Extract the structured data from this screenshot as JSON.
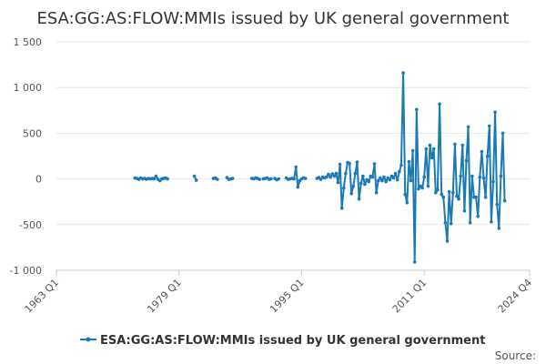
{
  "chart_data": {
    "type": "line",
    "title": "ESA:GG:AS:FLOW:MMIs issued by UK general government",
    "xlabel": "",
    "ylabel": "",
    "x_ticks": [
      "1963 Q1",
      "1979 Q1",
      "1995 Q1",
      "2011 Q1",
      "2024 Q4"
    ],
    "x_range": [
      "1963 Q1",
      "2024 Q4"
    ],
    "y_ticks": [
      "1 500",
      "1 000",
      "500",
      "0",
      "-500",
      "-1 000"
    ],
    "ylim": [
      -1000,
      1500
    ],
    "grid": true,
    "legend_position": "bottom",
    "series_color": "#1a7ab5",
    "series": [
      {
        "name": "ESA:GG:AS:FLOW:MMIs issued by UK general government",
        "points": [
          [
            "1973 Q2",
            10
          ],
          [
            "1973 Q3",
            5
          ],
          [
            "1973 Q4",
            -5
          ],
          [
            "1974 Q1",
            10
          ],
          [
            "1974 Q2",
            0
          ],
          [
            "1974 Q3",
            5
          ],
          [
            "1974 Q4",
            -5
          ],
          [
            "1975 Q1",
            5
          ],
          [
            "1975 Q2",
            0
          ],
          [
            "1975 Q3",
            5
          ],
          [
            "1975 Q4",
            0
          ],
          [
            "1976 Q1",
            30
          ],
          [
            "1976 Q2",
            -5
          ],
          [
            "1976 Q3",
            -20
          ],
          [
            "1976 Q4",
            0
          ],
          [
            "1977 Q1",
            5
          ],
          [
            "1977 Q2",
            10
          ],
          [
            "1977 Q3",
            0
          ],
          [
            "1981 Q1",
            30
          ],
          [
            "1981 Q2",
            -15
          ],
          [
            "1983 Q3",
            5
          ],
          [
            "1983 Q4",
            10
          ],
          [
            "1984 Q1",
            -5
          ],
          [
            "1985 Q2",
            15
          ],
          [
            "1985 Q3",
            -5
          ],
          [
            "1985 Q4",
            0
          ],
          [
            "1986 Q1",
            5
          ],
          [
            "1988 Q3",
            5
          ],
          [
            "1988 Q4",
            0
          ],
          [
            "1989 Q1",
            10
          ],
          [
            "1989 Q2",
            5
          ],
          [
            "1989 Q3",
            -5
          ],
          [
            "1990 Q1",
            0
          ],
          [
            "1990 Q2",
            5
          ],
          [
            "1990 Q3",
            10
          ],
          [
            "1990 Q4",
            -5
          ],
          [
            "1991 Q1",
            0
          ],
          [
            "1991 Q3",
            5
          ],
          [
            "1991 Q4",
            -10
          ],
          [
            "1992 Q1",
            0
          ],
          [
            "1993 Q1",
            10
          ],
          [
            "1993 Q2",
            -5
          ],
          [
            "1993 Q3",
            0
          ],
          [
            "1993 Q4",
            5
          ],
          [
            "1994 Q1",
            0
          ],
          [
            "1994 Q2",
            130
          ],
          [
            "1994 Q3",
            -90
          ],
          [
            "1994 Q4",
            -20
          ],
          [
            "1995 Q1",
            0
          ],
          [
            "1995 Q2",
            10
          ],
          [
            "1995 Q3",
            5
          ],
          [
            "1997 Q1",
            5
          ],
          [
            "1997 Q2",
            15
          ],
          [
            "1997 Q3",
            -5
          ],
          [
            "1997 Q4",
            20
          ],
          [
            "1998 Q1",
            10
          ],
          [
            "1998 Q2",
            20
          ],
          [
            "1998 Q3",
            50
          ],
          [
            "1998 Q4",
            20
          ],
          [
            "1999 Q1",
            55
          ],
          [
            "1999 Q2",
            30
          ],
          [
            "1999 Q3",
            60
          ],
          [
            "1999 Q4",
            -40
          ],
          [
            "2000 Q1",
            160
          ],
          [
            "2000 Q2",
            -320
          ],
          [
            "2000 Q3",
            -100
          ],
          [
            "2000 Q4",
            60
          ],
          [
            "2001 Q1",
            180
          ],
          [
            "2001 Q2",
            170
          ],
          [
            "2001 Q3",
            -160
          ],
          [
            "2001 Q4",
            -80
          ],
          [
            "2002 Q1",
            60
          ],
          [
            "2002 Q2",
            185
          ],
          [
            "2002 Q3",
            -220
          ],
          [
            "2002 Q4",
            -50
          ],
          [
            "2003 Q1",
            30
          ],
          [
            "2003 Q2",
            -60
          ],
          [
            "2003 Q3",
            -10
          ],
          [
            "2003 Q4",
            -30
          ],
          [
            "2004 Q1",
            30
          ],
          [
            "2004 Q2",
            20
          ],
          [
            "2004 Q3",
            165
          ],
          [
            "2004 Q4",
            -150
          ],
          [
            "2005 Q1",
            -20
          ],
          [
            "2005 Q2",
            10
          ],
          [
            "2005 Q3",
            -20
          ],
          [
            "2005 Q4",
            20
          ],
          [
            "2006 Q1",
            -30
          ],
          [
            "2006 Q2",
            10
          ],
          [
            "2006 Q3",
            -10
          ],
          [
            "2006 Q4",
            30
          ],
          [
            "2007 Q1",
            10
          ],
          [
            "2007 Q2",
            60
          ],
          [
            "2007 Q3",
            -10
          ],
          [
            "2007 Q4",
            80
          ],
          [
            "2008 Q1",
            150
          ],
          [
            "2008 Q2",
            1160
          ],
          [
            "2008 Q3",
            -170
          ],
          [
            "2008 Q4",
            -260
          ],
          [
            "2009 Q1",
            190
          ],
          [
            "2009 Q2",
            -20
          ],
          [
            "2009 Q3",
            310
          ],
          [
            "2009 Q4",
            -910
          ],
          [
            "2010 Q1",
            760
          ],
          [
            "2010 Q2",
            -110
          ],
          [
            "2010 Q3",
            -80
          ],
          [
            "2010 Q4",
            -100
          ],
          [
            "2011 Q1",
            20
          ],
          [
            "2011 Q2",
            330
          ],
          [
            "2011 Q3",
            -80
          ],
          [
            "2011 Q4",
            370
          ],
          [
            "2012 Q1",
            230
          ],
          [
            "2012 Q2",
            330
          ],
          [
            "2012 Q3",
            -150
          ],
          [
            "2012 Q4",
            -120
          ],
          [
            "2013 Q1",
            820
          ],
          [
            "2013 Q2",
            -170
          ],
          [
            "2013 Q3",
            -200
          ],
          [
            "2013 Q4",
            -480
          ],
          [
            "2014 Q1",
            -680
          ],
          [
            "2014 Q2",
            -140
          ],
          [
            "2014 Q3",
            -490
          ],
          [
            "2014 Q4",
            -150
          ],
          [
            "2015 Q1",
            380
          ],
          [
            "2015 Q2",
            -190
          ],
          [
            "2015 Q3",
            -220
          ],
          [
            "2015 Q4",
            30
          ],
          [
            "2016 Q1",
            370
          ],
          [
            "2016 Q2",
            -350
          ],
          [
            "2016 Q3",
            200
          ],
          [
            "2016 Q4",
            570
          ],
          [
            "2017 Q1",
            -480
          ],
          [
            "2017 Q2",
            30
          ],
          [
            "2017 Q3",
            -200
          ],
          [
            "2017 Q4",
            -200
          ],
          [
            "2018 Q1",
            -410
          ],
          [
            "2018 Q2",
            20
          ],
          [
            "2018 Q3",
            300
          ],
          [
            "2018 Q4",
            10
          ],
          [
            "2019 Q1",
            -200
          ],
          [
            "2019 Q2",
            250
          ],
          [
            "2019 Q3",
            580
          ],
          [
            "2019 Q4",
            -470
          ],
          [
            "2020 Q1",
            -30
          ],
          [
            "2020 Q2",
            730
          ],
          [
            "2020 Q3",
            -280
          ],
          [
            "2020 Q4",
            -540
          ],
          [
            "2021 Q1",
            30
          ],
          [
            "2021 Q2",
            500
          ],
          [
            "2021 Q3",
            -240
          ]
        ]
      }
    ]
  },
  "source": {
    "label": "Source:"
  }
}
